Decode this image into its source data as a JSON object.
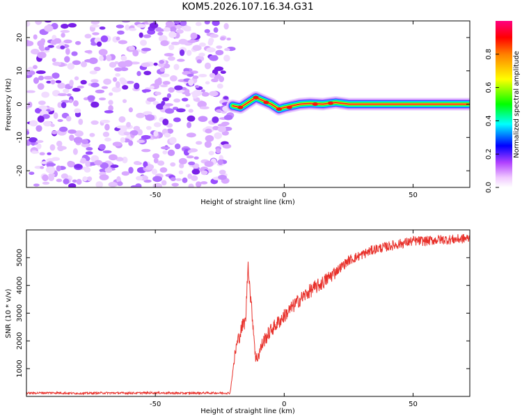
{
  "chart_data": [
    {
      "type": "heatmap",
      "title": "KOM5.2026.107.16.34.G31",
      "xlabel": "Height of straight line (km)",
      "ylabel": "Frequency (Hz)",
      "xlim": [
        -100,
        72
      ],
      "ylim": [
        -25,
        25
      ],
      "xticks": [
        -50,
        0,
        50
      ],
      "yticks": [
        -20,
        -10,
        0,
        10,
        20
      ],
      "xtick_labels": [
        "-50",
        "0",
        "50"
      ],
      "ytick_labels": [
        "-20",
        "-10",
        "0",
        "10",
        "20"
      ],
      "noise_region_x": [
        -100,
        -20
      ],
      "carrier_start_x": -20,
      "carrier_freq_path": [
        [
          -20,
          -0.5
        ],
        [
          -17,
          -1
        ],
        [
          -14,
          0.5
        ],
        [
          -11,
          2
        ],
        [
          -8,
          1
        ],
        [
          -5,
          0
        ],
        [
          -2,
          -1.5
        ],
        [
          0,
          -1
        ],
        [
          3,
          -0.5
        ],
        [
          6,
          0
        ],
        [
          10,
          0.2
        ],
        [
          15,
          0
        ],
        [
          20,
          0.5
        ],
        [
          25,
          0
        ],
        [
          72,
          0
        ]
      ],
      "colorbar": {
        "label": "Normalized spectral amplitude",
        "range": [
          0,
          1
        ],
        "ticks": [
          0,
          0.2,
          0.4,
          0.6,
          0.8
        ],
        "tick_labels": [
          "0.0",
          "0.2",
          "0.4",
          "0.6",
          "0.8"
        ],
        "colors": [
          "#ffffff",
          "#e060ff",
          "#a040ff",
          "#0000ff",
          "#00ffff",
          "#00ff00",
          "#ffff00",
          "#ff8000",
          "#ff0000",
          "#ff0080"
        ]
      }
    },
    {
      "type": "line",
      "xlabel": "Height of straight line (km)",
      "ylabel": "SNR (10 * v/v)",
      "xlim": [
        -100,
        72
      ],
      "ylim": [
        0,
        6000
      ],
      "xticks": [
        -50,
        0,
        50
      ],
      "yticks": [
        1000,
        2000,
        3000,
        4000,
        5000
      ],
      "xtick_labels": [
        "-50",
        "0",
        "50"
      ],
      "ytick_labels": [
        "1000",
        "2000",
        "3000",
        "4000",
        "5000"
      ],
      "series": [
        {
          "name": "SNR",
          "color": "#e8302a",
          "x": [
            -100,
            -90,
            -80,
            -70,
            -60,
            -50,
            -40,
            -30,
            -21,
            -19,
            -18,
            -16,
            -15,
            -14,
            -13,
            -12,
            -11,
            -10,
            -8,
            -5,
            -2,
            0,
            5,
            10,
            15,
            20,
            25,
            30,
            35,
            40,
            45,
            50,
            55,
            60,
            65,
            72
          ],
          "values": [
            120,
            130,
            110,
            125,
            120,
            130,
            115,
            125,
            120,
            1600,
            2000,
            2600,
            2700,
            4800,
            3500,
            2500,
            1300,
            1500,
            2000,
            2400,
            2700,
            2900,
            3400,
            3800,
            4100,
            4500,
            4900,
            5100,
            5300,
            5400,
            5500,
            5600,
            5600,
            5650,
            5650,
            5700
          ]
        }
      ]
    }
  ]
}
